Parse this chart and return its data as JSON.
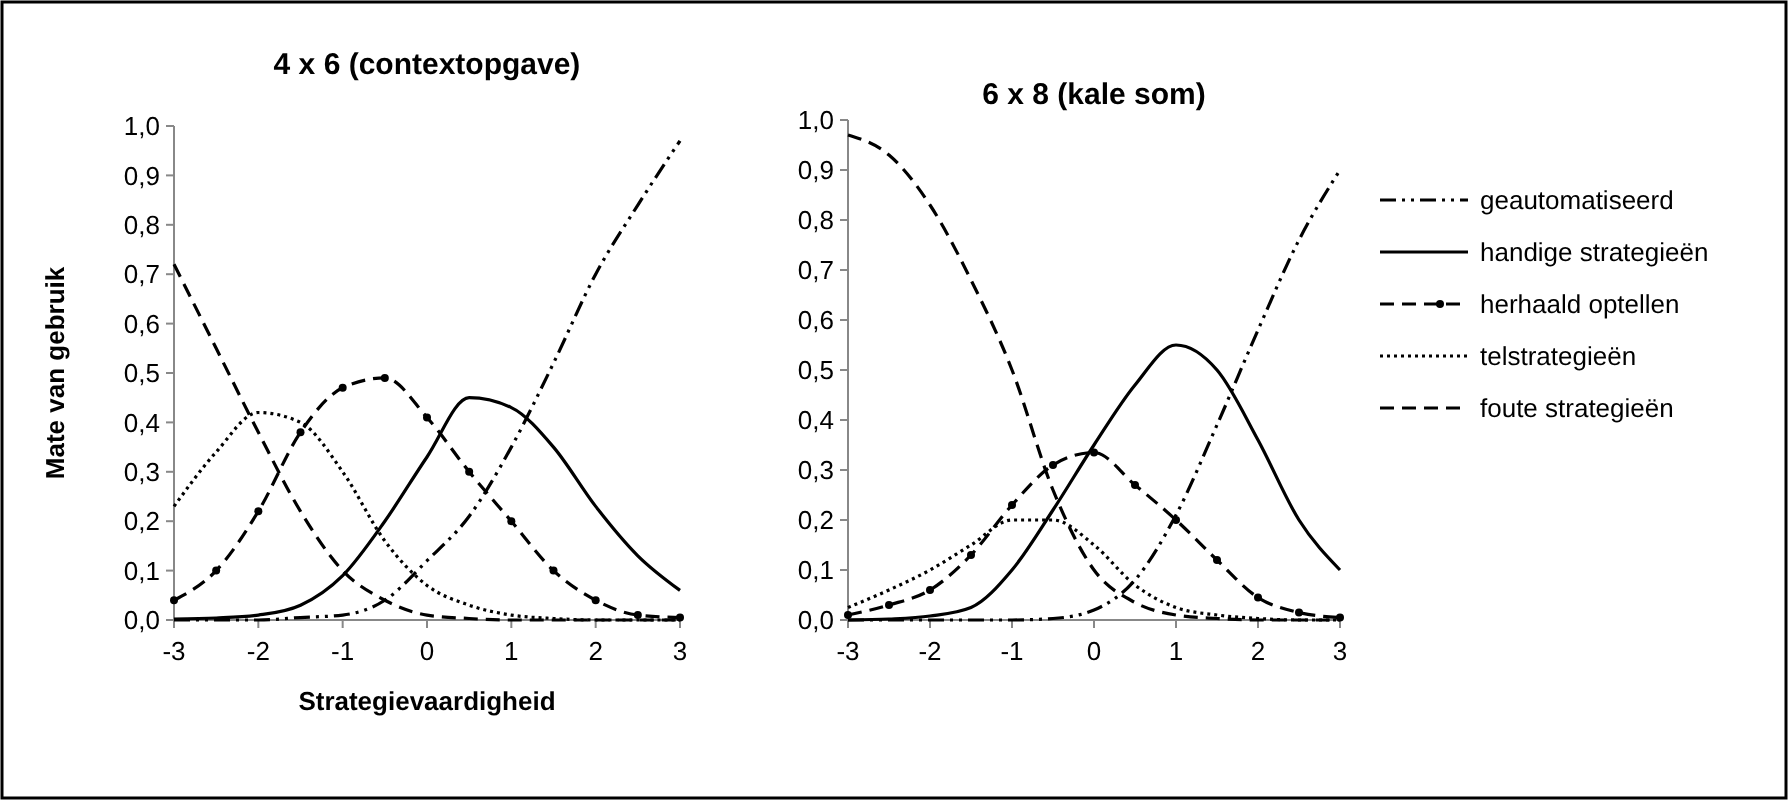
{
  "chart_data": [
    {
      "type": "line",
      "title": "4 x 6 (contextopgave)",
      "xlabel": "Strategievaardigheid",
      "ylabel": "Mate van gebruik",
      "x": [
        -3,
        -2.5,
        -2,
        -1.5,
        -1,
        -0.5,
        0,
        0.5,
        1,
        1.5,
        2,
        2.5,
        3
      ],
      "xlim": [
        -3,
        3
      ],
      "xticks": [
        -3,
        -2,
        -1,
        0,
        1,
        2,
        3
      ],
      "ylim": [
        0,
        1
      ],
      "yticks": [
        {
          "value": 0,
          "label": "0,0"
        },
        {
          "value": 0.1,
          "label": "0,1"
        },
        {
          "value": 0.2,
          "label": "0,2"
        },
        {
          "value": 0.3,
          "label": "0,3"
        },
        {
          "value": 0.4,
          "label": "0,4"
        },
        {
          "value": 0.5,
          "label": "0,5"
        },
        {
          "value": 0.6,
          "label": "0,6"
        },
        {
          "value": 0.7,
          "label": "0,7"
        },
        {
          "value": 0.8,
          "label": "0,8"
        },
        {
          "value": 0.9,
          "label": "0,9"
        },
        {
          "value": 1,
          "label": "1,0"
        }
      ],
      "grid": false,
      "legend": false,
      "series": [
        {
          "color": "#000000",
          "line_style": "dashdot",
          "marker": "none",
          "values": [
            0,
            0,
            0,
            0.005,
            0.01,
            0.04,
            0.12,
            0.21,
            0.35,
            0.52,
            0.7,
            0.84,
            0.97
          ]
        },
        {
          "color": "#000000",
          "line_style": "solid",
          "marker": "none",
          "values": [
            0.002,
            0.004,
            0.01,
            0.03,
            0.09,
            0.2,
            0.33,
            0.45,
            0.43,
            0.35,
            0.23,
            0.13,
            0.06
          ]
        },
        {
          "color": "#000000",
          "line_style": "dashed",
          "marker": "circle",
          "values": [
            0.04,
            0.1,
            0.22,
            0.38,
            0.47,
            0.49,
            0.41,
            0.3,
            0.2,
            0.1,
            0.04,
            0.01,
            0.005
          ]
        },
        {
          "color": "#000000",
          "line_style": "dotted",
          "marker": "none",
          "values": [
            0.23,
            0.34,
            0.42,
            0.4,
            0.3,
            0.16,
            0.07,
            0.03,
            0.01,
            0.003,
            0,
            0,
            0
          ]
        },
        {
          "color": "#000000",
          "line_style": "dashed",
          "marker": "none",
          "values": [
            0.72,
            0.55,
            0.38,
            0.22,
            0.1,
            0.04,
            0.01,
            0.003,
            0,
            0,
            0,
            0,
            0
          ]
        }
      ]
    },
    {
      "type": "line",
      "title": "6 x 8 (kale som)",
      "x": [
        -3,
        -2.5,
        -2,
        -1.5,
        -1,
        -0.5,
        0,
        0.5,
        1,
        1.5,
        2,
        2.5,
        3
      ],
      "xlim": [
        -3,
        3
      ],
      "xticks": [
        -3,
        -2,
        -1,
        0,
        1,
        2,
        3
      ],
      "ylim": [
        0,
        1
      ],
      "yticks": [
        {
          "value": 0,
          "label": "0,0"
        },
        {
          "value": 0.1,
          "label": "0,1"
        },
        {
          "value": 0.2,
          "label": "0,2"
        },
        {
          "value": 0.3,
          "label": "0,3"
        },
        {
          "value": 0.4,
          "label": "0,4"
        },
        {
          "value": 0.5,
          "label": "0,5"
        },
        {
          "value": 0.6,
          "label": "0,6"
        },
        {
          "value": 0.7,
          "label": "0,7"
        },
        {
          "value": 0.8,
          "label": "0,8"
        },
        {
          "value": 0.9,
          "label": "0,9"
        },
        {
          "value": 1,
          "label": "1,0"
        }
      ],
      "grid": false,
      "legend": "right",
      "series": [
        {
          "name": "geautomatiseerd",
          "color": "#000000",
          "line_style": "dashdot",
          "marker": "none",
          "values": [
            0,
            0,
            0,
            0,
            0,
            0.003,
            0.02,
            0.08,
            0.21,
            0.39,
            0.58,
            0.76,
            0.9
          ]
        },
        {
          "name": "handige strategieën",
          "color": "#000000",
          "line_style": "solid",
          "marker": "none",
          "values": [
            0,
            0.002,
            0.008,
            0.025,
            0.1,
            0.22,
            0.35,
            0.47,
            0.55,
            0.5,
            0.36,
            0.2,
            0.1
          ]
        },
        {
          "name": "herhaald optellen",
          "color": "#000000",
          "line_style": "dashed",
          "marker": "circle",
          "values": [
            0.01,
            0.03,
            0.06,
            0.13,
            0.23,
            0.31,
            0.335,
            0.27,
            0.2,
            0.12,
            0.045,
            0.015,
            0.005
          ]
        },
        {
          "name": "telstrategieën",
          "color": "#000000",
          "line_style": "dotted",
          "marker": "none",
          "values": [
            0.025,
            0.06,
            0.1,
            0.15,
            0.2,
            0.2,
            0.15,
            0.07,
            0.025,
            0.01,
            0.003,
            0,
            0
          ]
        },
        {
          "name": "foute strategieën",
          "color": "#000000",
          "line_style": "dashed",
          "marker": "none",
          "values": [
            0.97,
            0.93,
            0.83,
            0.68,
            0.5,
            0.26,
            0.1,
            0.035,
            0.01,
            0.003,
            0,
            0,
            0
          ]
        }
      ]
    }
  ]
}
